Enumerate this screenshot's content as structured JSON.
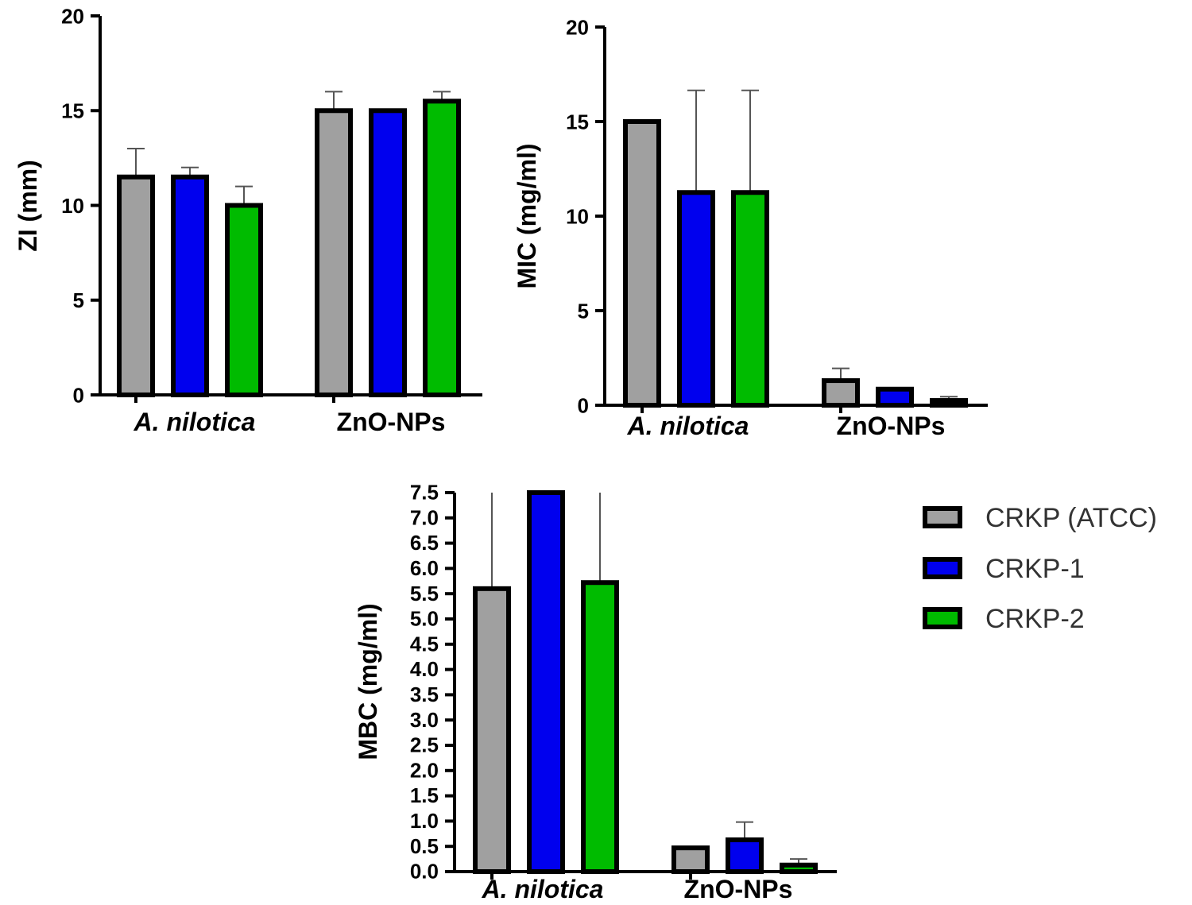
{
  "chart_data": [
    {
      "type": "bar",
      "ylabel": "ZI (mm)",
      "ylim": [
        0,
        20
      ],
      "yticks": [
        0,
        5,
        10,
        15,
        20
      ],
      "categories": [
        "A. nilotica",
        "ZnO-NPs"
      ],
      "series": [
        {
          "name": "CRKP (ATCC)",
          "values": [
            11.5,
            15.0
          ],
          "errors": [
            1.5,
            1.0
          ]
        },
        {
          "name": "CRKP-1",
          "values": [
            11.5,
            15.0
          ],
          "errors": [
            0.5,
            0.0
          ]
        },
        {
          "name": "CRKP-2",
          "values": [
            10.0,
            15.5
          ],
          "errors": [
            1.0,
            0.5
          ]
        }
      ]
    },
    {
      "type": "bar",
      "ylabel": "MIC (mg/ml)",
      "ylim": [
        0,
        20
      ],
      "yticks": [
        0,
        5,
        10,
        15,
        20
      ],
      "categories": [
        "A. nilotica",
        "ZnO-NPs"
      ],
      "series": [
        {
          "name": "CRKP (ATCC)",
          "values": [
            15.0,
            1.3
          ],
          "errors": [
            0.0,
            0.65
          ]
        },
        {
          "name": "CRKP-1",
          "values": [
            11.25,
            0.85
          ],
          "errors": [
            5.4,
            0.0
          ]
        },
        {
          "name": "CRKP-2",
          "values": [
            11.25,
            0.25
          ],
          "errors": [
            5.4,
            0.2
          ]
        }
      ]
    },
    {
      "type": "bar",
      "ylabel": "MBC (mg/ml)",
      "ylim": [
        0,
        7.5
      ],
      "yticks": [
        "0.0",
        "0.5",
        "1.0",
        "1.5",
        "2.0",
        "2.5",
        "3.0",
        "3.5",
        "4.0",
        "4.5",
        "5.0",
        "5.5",
        "6.0",
        "6.5",
        "7.0",
        "7.5"
      ],
      "categories": [
        "A. nilotica",
        "ZnO-NPs"
      ],
      "series": [
        {
          "name": "CRKP (ATCC)",
          "values": [
            5.6,
            0.47
          ],
          "errors": [
            3.0,
            0.0
          ]
        },
        {
          "name": "CRKP-1",
          "values": [
            7.5,
            0.63
          ],
          "errors": [
            0.0,
            0.35
          ]
        },
        {
          "name": "CRKP-2",
          "values": [
            5.72,
            0.13
          ],
          "errors": [
            3.0,
            0.12
          ]
        }
      ]
    }
  ],
  "legend": {
    "placement": "right",
    "items": [
      {
        "label": "CRKP (ATCC)",
        "color": "#a0a0a0"
      },
      {
        "label": "CRKP-1",
        "color": "#0000ee"
      },
      {
        "label": "CRKP-2",
        "color": "#00bb00"
      }
    ]
  }
}
